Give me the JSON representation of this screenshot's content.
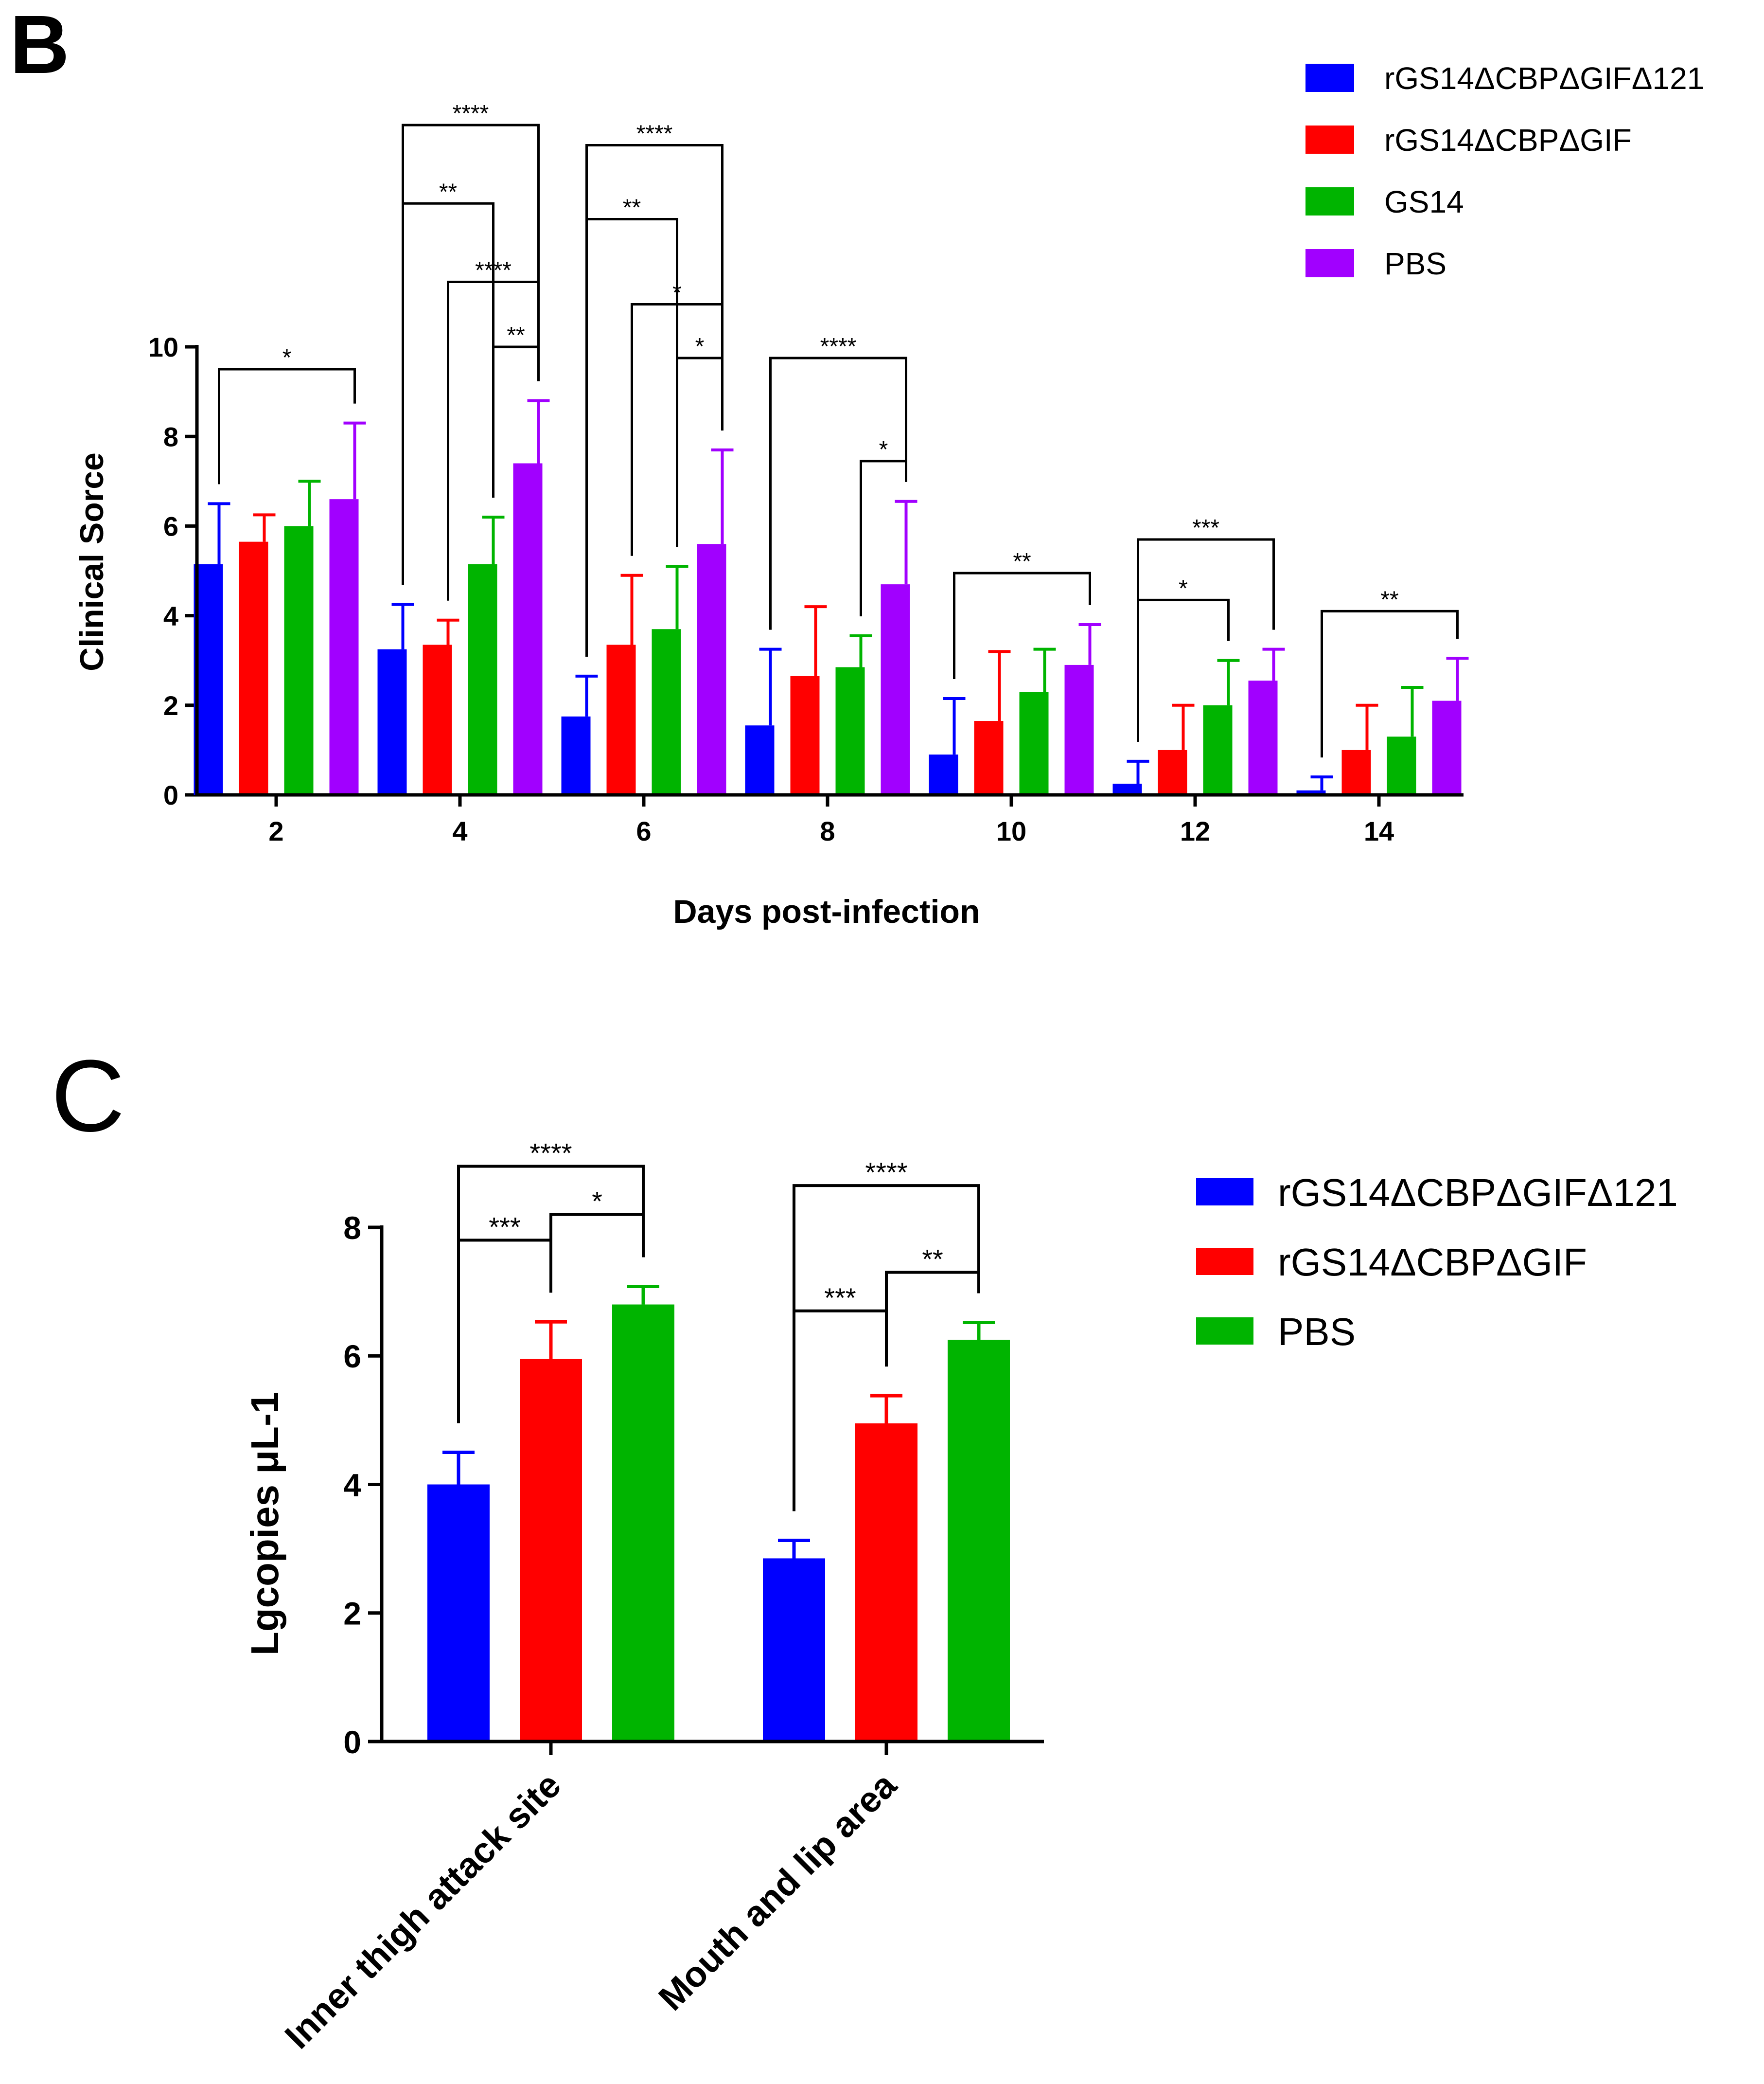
{
  "panels": {
    "B": {
      "letter": "B"
    },
    "C": {
      "letter": "C"
    }
  },
  "colors": {
    "blue": "#0000ff",
    "red": "#ff0000",
    "green": "#00b400",
    "purple": "#a100ff",
    "axis": "#000000"
  },
  "chart_data": [
    {
      "id": "B",
      "type": "bar",
      "title": "",
      "xlabel": "Days post-infection",
      "ylabel": "Clinical Sorce",
      "ylim": [
        0,
        10
      ],
      "yticks": [
        "0",
        "2",
        "4",
        "6",
        "8",
        "10"
      ],
      "categories": [
        "2",
        "4",
        "6",
        "8",
        "10",
        "12",
        "14"
      ],
      "legend_position": "top-right",
      "series": [
        {
          "name": "rGS14ΔCBPΔGIFΔ121",
          "color": "#0000ff",
          "values": [
            5.15,
            3.25,
            1.75,
            1.55,
            0.9,
            0.25,
            0.1
          ],
          "errors": [
            1.35,
            1.0,
            0.9,
            1.7,
            1.25,
            0.5,
            0.3
          ]
        },
        {
          "name": "rGS14ΔCBPΔGIF",
          "color": "#ff0000",
          "values": [
            5.65,
            3.35,
            3.35,
            2.65,
            1.65,
            1.0,
            1.0
          ],
          "errors": [
            0.6,
            0.55,
            1.55,
            1.55,
            1.55,
            1.0,
            1.0
          ]
        },
        {
          "name": "GS14",
          "color": "#00b400",
          "values": [
            6.0,
            5.15,
            3.7,
            2.85,
            2.3,
            2.0,
            1.3
          ],
          "errors": [
            1.0,
            1.05,
            1.4,
            0.7,
            0.95,
            1.0,
            1.1
          ]
        },
        {
          "name": "PBS",
          "color": "#a100ff",
          "values": [
            6.6,
            7.4,
            5.6,
            4.7,
            2.9,
            2.55,
            2.1
          ],
          "errors": [
            1.7,
            1.4,
            2.1,
            1.85,
            0.9,
            0.7,
            0.95
          ]
        }
      ],
      "significance": [
        {
          "cat": 0,
          "from": 0,
          "to": 3,
          "y": 9.5,
          "label": "*"
        },
        {
          "cat": 1,
          "from": 0,
          "to": 3,
          "y": 14.95,
          "label": "****"
        },
        {
          "cat": 1,
          "from": 0,
          "to": 2,
          "y": 13.2,
          "label": "**"
        },
        {
          "cat": 1,
          "from": 1,
          "to": 3,
          "y": 11.45,
          "label": "****"
        },
        {
          "cat": 1,
          "from": 2,
          "to": 3,
          "y": 10.0,
          "label": "**"
        },
        {
          "cat": 2,
          "from": 0,
          "to": 3,
          "y": 14.5,
          "label": "****"
        },
        {
          "cat": 2,
          "from": 0,
          "to": 2,
          "y": 12.85,
          "label": "**"
        },
        {
          "cat": 2,
          "from": 1,
          "to": 3,
          "y": 10.95,
          "label": "*"
        },
        {
          "cat": 2,
          "from": 2,
          "to": 3,
          "y": 9.75,
          "label": "*"
        },
        {
          "cat": 3,
          "from": 0,
          "to": 3,
          "y": 9.75,
          "label": "****"
        },
        {
          "cat": 3,
          "from": 2,
          "to": 3,
          "y": 7.45,
          "label": "*"
        },
        {
          "cat": 4,
          "from": 0,
          "to": 3,
          "y": 4.95,
          "label": "**"
        },
        {
          "cat": 5,
          "from": 0,
          "to": 3,
          "y": 5.7,
          "label": "***"
        },
        {
          "cat": 5,
          "from": 0,
          "to": 2,
          "y": 4.35,
          "label": "*"
        },
        {
          "cat": 6,
          "from": 0,
          "to": 3,
          "y": 4.1,
          "label": "**"
        }
      ]
    },
    {
      "id": "C",
      "type": "bar",
      "title": "",
      "xlabel": "",
      "ylabel": "Lgcopies μL-1",
      "ylim": [
        0,
        8
      ],
      "yticks": [
        "0",
        "2",
        "4",
        "6",
        "8"
      ],
      "categories": [
        "Inner thigh attack site",
        "Mouth and lip area"
      ],
      "legend_position": "right",
      "series": [
        {
          "name": "rGS14ΔCBPΔGIFΔ121",
          "color": "#0000ff",
          "values": [
            4.0,
            2.85
          ],
          "errors": [
            0.5,
            0.28
          ]
        },
        {
          "name": "rGS14ΔCBPΔGIF",
          "color": "#ff0000",
          "values": [
            5.95,
            4.95
          ],
          "errors": [
            0.58,
            0.43
          ]
        },
        {
          "name": "PBS",
          "color": "#00b400",
          "values": [
            6.8,
            6.25
          ],
          "errors": [
            0.28,
            0.27
          ]
        }
      ],
      "significance": [
        {
          "cat": 0,
          "from": 0,
          "to": 2,
          "y": 8.95,
          "label": "****"
        },
        {
          "cat": 0,
          "from": 0,
          "to": 1,
          "y": 7.8,
          "label": "***"
        },
        {
          "cat": 0,
          "from": 1,
          "to": 2,
          "y": 8.2,
          "label": "*"
        },
        {
          "cat": 1,
          "from": 0,
          "to": 2,
          "y": 8.65,
          "label": "****"
        },
        {
          "cat": 1,
          "from": 0,
          "to": 1,
          "y": 6.7,
          "label": "***"
        },
        {
          "cat": 1,
          "from": 1,
          "to": 2,
          "y": 7.3,
          "label": "**"
        }
      ]
    }
  ]
}
